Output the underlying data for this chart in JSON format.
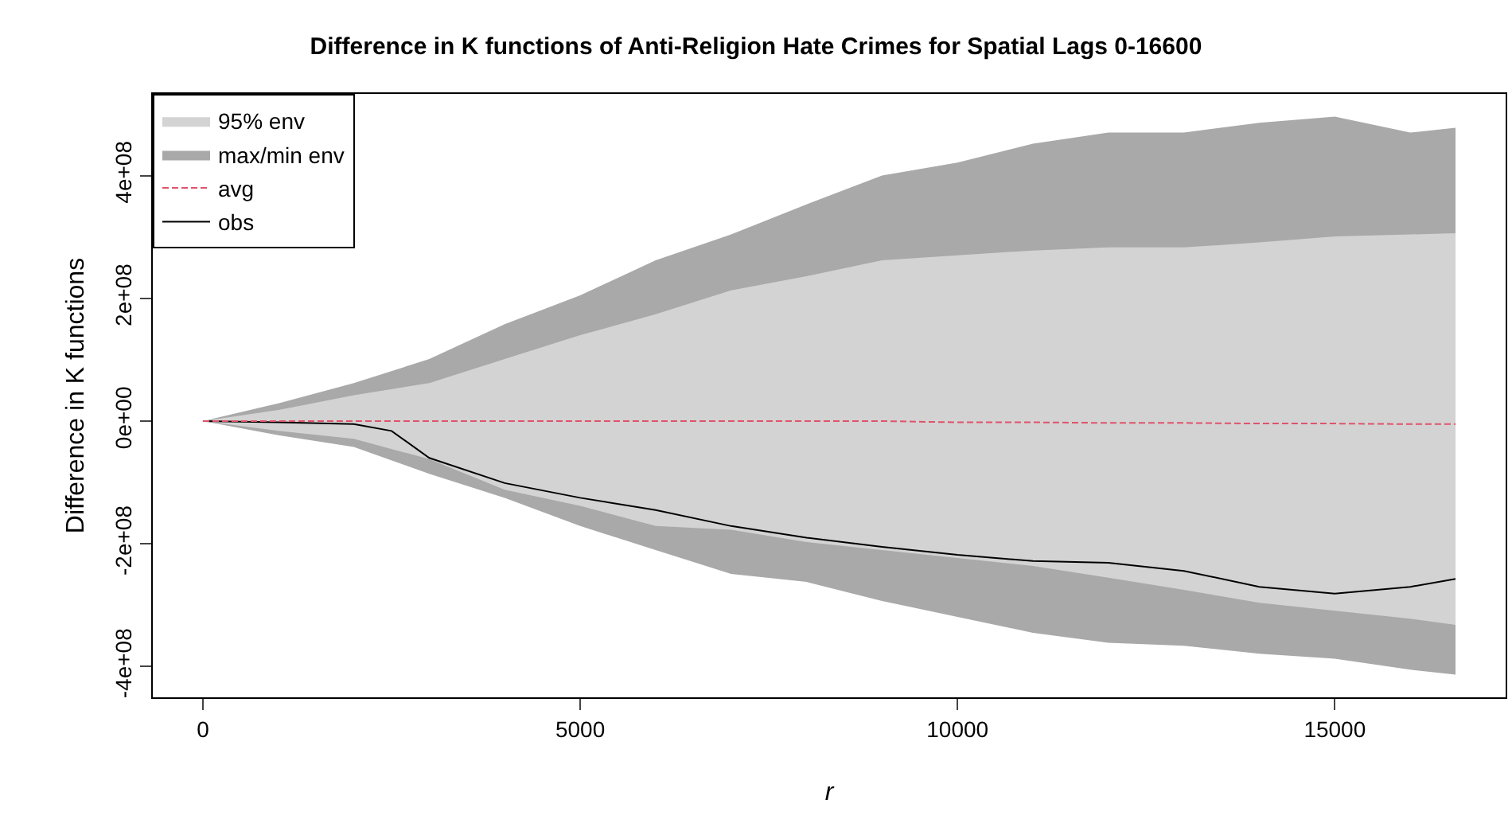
{
  "chart_data": {
    "type": "line",
    "title": "Difference in K functions of Anti-Religion Hate Crimes for Spatial Lags 0-16600",
    "xlabel": "r",
    "ylabel": "Difference in K functions",
    "x": [
      0,
      1000,
      2000,
      3000,
      4000,
      5000,
      6000,
      7000,
      8000,
      9000,
      10000,
      11000,
      12000,
      13000,
      14000,
      15000,
      16000,
      16600
    ],
    "series": [
      {
        "name": "max/min env",
        "type": "area",
        "color": "#a9a9a9",
        "values": [
          0,
          29000000,
          62000000,
          101000000,
          158000000,
          205000000,
          262000000,
          304000000,
          353000000,
          400000000,
          421000000,
          452000000,
          470000000,
          470000000,
          486000000,
          496000000,
          470000000,
          478000000
        ]
      },
      {
        "type": "area",
        "color": "#a9a9a9",
        "values": [
          0,
          -23000000,
          -42000000,
          -86000000,
          -125000000,
          -171000000,
          -210000000,
          -249000000,
          -262000000,
          -293000000,
          -319000000,
          -345000000,
          -361000000,
          -366000000,
          -379000000,
          -387000000,
          -405000000,
          -413000000
        ]
      },
      {
        "name": "95% env",
        "type": "area",
        "color": "#d3d3d3",
        "values": [
          0,
          18000000,
          42000000,
          62000000,
          101000000,
          140000000,
          174000000,
          213000000,
          236000000,
          262000000,
          270000000,
          278000000,
          283000000,
          283000000,
          291000000,
          301000000,
          304000000,
          306000000
        ]
      },
      {
        "type": "area",
        "color": "#d3d3d3",
        "values": [
          0,
          -16000000,
          -29000000,
          -62000000,
          -112000000,
          -138000000,
          -171000000,
          -177000000,
          -197000000,
          -210000000,
          -223000000,
          -236000000,
          -255000000,
          -275000000,
          -296000000,
          -309000000,
          -322000000,
          -332000000
        ]
      },
      {
        "name": "obs",
        "color": "#000000",
        "line_style": "solid",
        "x": [
          0,
          1000,
          2000,
          2500,
          3000,
          4000,
          5000,
          6000,
          7000,
          8000,
          9000,
          10000,
          11000,
          12000,
          13000,
          14000,
          15000,
          16000,
          16600
        ],
        "values": [
          0,
          -2000000,
          -5000000,
          -16000000,
          -60000000,
          -101000000,
          -125000000,
          -145000000,
          -171000000,
          -190000000,
          -205000000,
          -218000000,
          -228000000,
          -231000000,
          -244000000,
          -270000000,
          -281000000,
          -270000000,
          -257000000
        ]
      },
      {
        "name": "avg",
        "color": "#df536b",
        "line_style": "dashed",
        "values": [
          0,
          0,
          0,
          0,
          0,
          0,
          0,
          0,
          0,
          0,
          -2000000,
          -2000000,
          -3000000,
          -3000000,
          -4000000,
          -4000000,
          -5000000,
          -5000000
        ]
      }
    ],
    "xlim": [
      -664,
      17264
    ],
    "xticks": [
      0,
      5000,
      10000,
      15000
    ],
    "ylim": [
      -450000000,
      533000000
    ],
    "yticks": [
      {
        "value": -400000000,
        "label": "-4e+08"
      },
      {
        "value": -200000000,
        "label": "-2e+08"
      },
      {
        "value": 0,
        "label": "0e+00"
      },
      {
        "value": 200000000,
        "label": "2e+08"
      },
      {
        "value": 400000000,
        "label": "4e+08"
      }
    ],
    "grid": false,
    "legend": "top left",
    "marker": "none"
  }
}
